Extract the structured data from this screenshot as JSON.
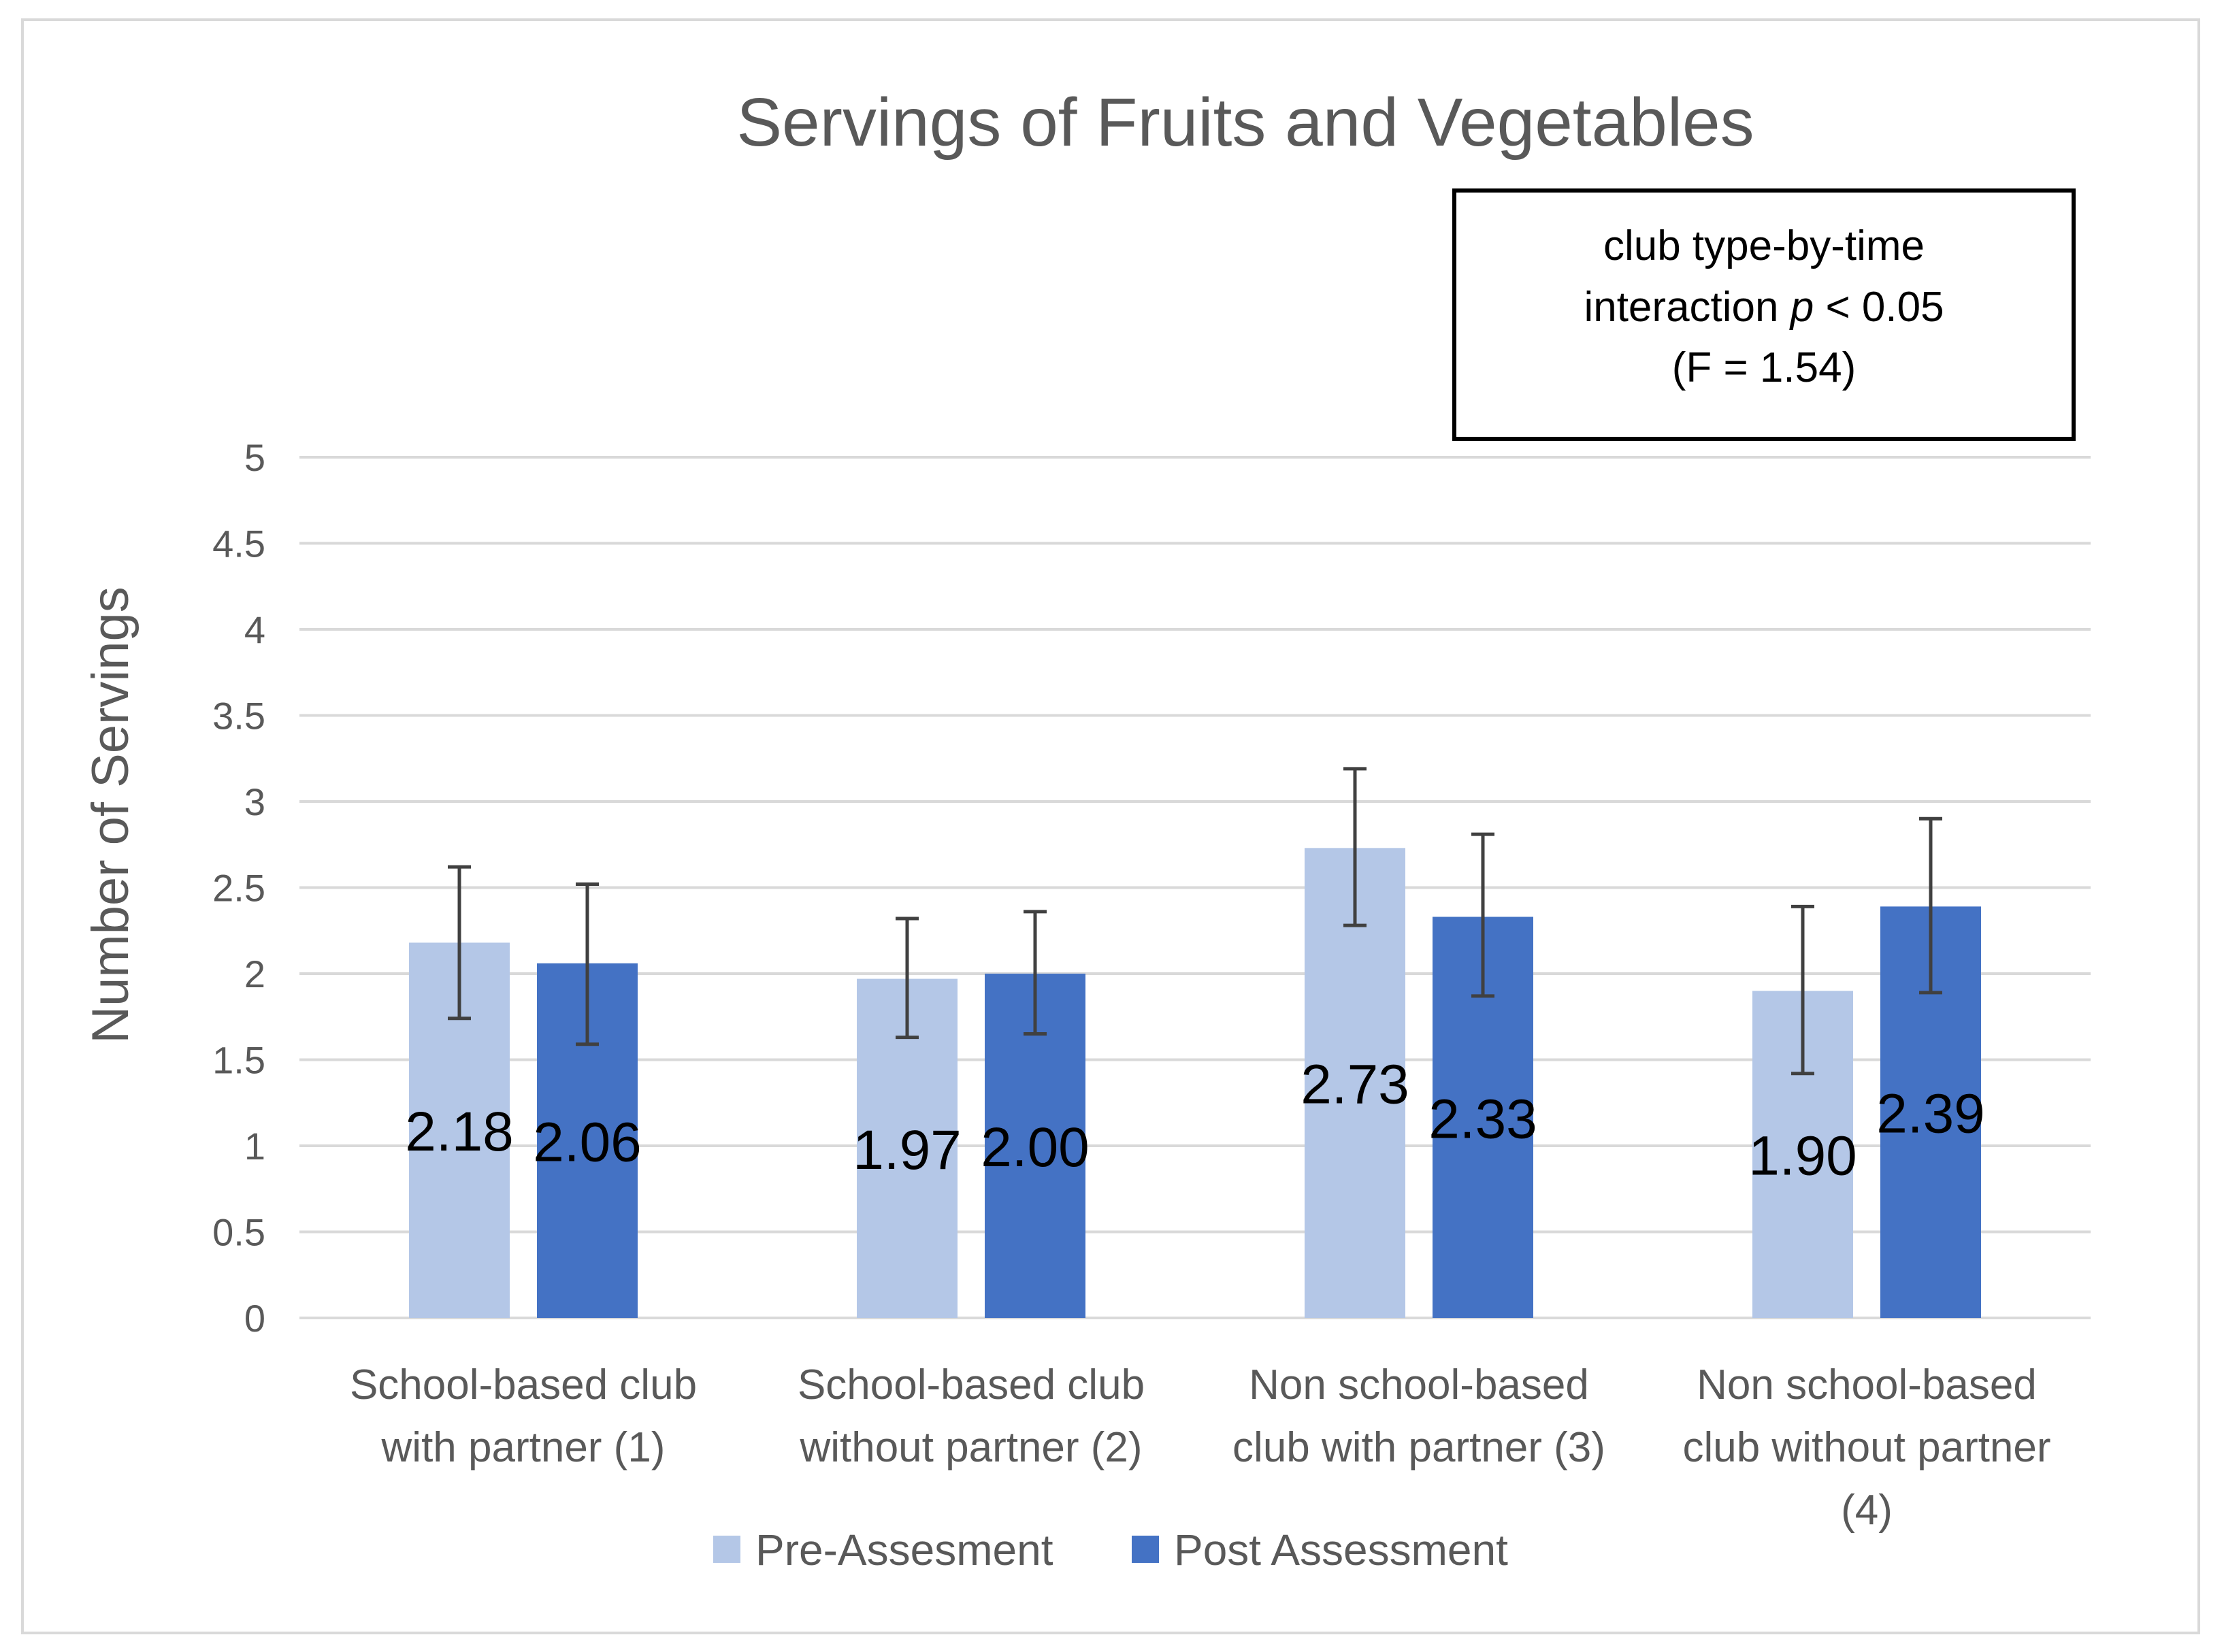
{
  "chart_data": {
    "type": "bar",
    "title": "Servings of Fruits and Vegetables",
    "xlabel": "",
    "ylabel": "Number of Servings",
    "ylim": [
      0,
      5
    ],
    "yticks": [
      "0",
      "0.5",
      "1",
      "1.5",
      "2",
      "2.5",
      "3",
      "3.5",
      "4",
      "4.5",
      "5"
    ],
    "grid": true,
    "legend_position": "bottom",
    "categories": [
      [
        "School-based club",
        "with partner (1)"
      ],
      [
        "School-based club",
        "without partner (2)"
      ],
      [
        "Non school-based",
        "club with partner (3)"
      ],
      [
        "Non school-based",
        "club without partner",
        "(4)"
      ]
    ],
    "series": [
      {
        "name": "Pre-Assesment",
        "color": "#B4C7E7",
        "values": [
          2.18,
          1.97,
          2.73,
          1.9
        ],
        "labels": [
          "2.18",
          "1.97",
          "2.73",
          "1.90"
        ],
        "error_low": [
          1.74,
          1.63,
          2.28,
          1.42
        ],
        "error_high": [
          2.62,
          2.32,
          3.19,
          2.39
        ]
      },
      {
        "name": "Post Assessment",
        "color": "#4472C4",
        "values": [
          2.06,
          2.0,
          2.33,
          2.39
        ],
        "labels": [
          "2.06",
          "2.00",
          "2.33",
          "2.39"
        ],
        "error_low": [
          1.59,
          1.65,
          1.87,
          1.89
        ],
        "error_high": [
          2.52,
          2.36,
          2.81,
          2.9
        ]
      }
    ],
    "annotation": {
      "line1": "club type-by-time",
      "line2_prefix": "interaction ",
      "line2_italic": "p",
      "line2_suffix": " < 0.05",
      "line3": "(F = 1.54)"
    }
  }
}
